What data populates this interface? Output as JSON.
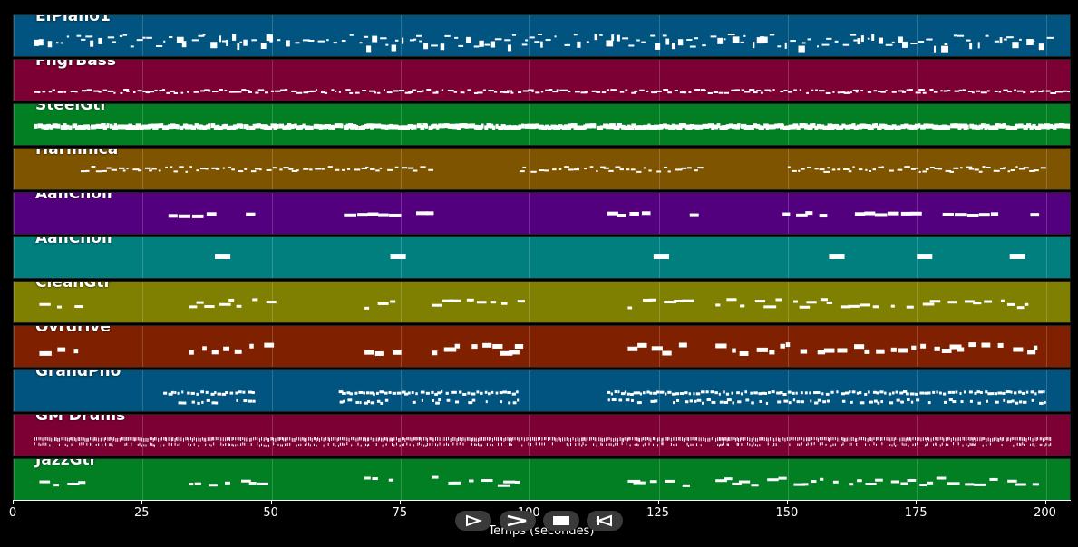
{
  "tracks": [
    {
      "name": "ElPiano1",
      "color": "#01547f",
      "pattern": "sparse-mixed"
    },
    {
      "name": "FngrBass",
      "color": "#7d0034",
      "pattern": "low-line"
    },
    {
      "name": "SteelGtr",
      "color": "#017f22",
      "pattern": "dense-line"
    },
    {
      "name": "Harmnica",
      "color": "#7f5401",
      "pattern": "phrases"
    },
    {
      "name": "AahChoir",
      "color": "#53007f",
      "pattern": "blocks"
    },
    {
      "name": "AahChoir",
      "color": "#017f7f",
      "pattern": "short-blocks"
    },
    {
      "name": "CleanGtr",
      "color": "#7f7f01",
      "pattern": "riffs"
    },
    {
      "name": "Ovrdrive",
      "color": "#7f2101",
      "pattern": "riffs-bold"
    },
    {
      "name": "GrandPno",
      "color": "#01547f",
      "pattern": "arpeggio"
    },
    {
      "name": "GM Drums",
      "color": "#7d0034",
      "pattern": "drums"
    },
    {
      "name": "JazzGtr",
      "color": "#017f22",
      "pattern": "riffs"
    }
  ],
  "axis": {
    "label": "Temps (secondes)",
    "min": 0,
    "max": 205,
    "ticks": [
      "0",
      "25",
      "50",
      "75",
      "100",
      "125",
      "150",
      "175",
      "200"
    ]
  },
  "controls": [
    {
      "name": "rewind-icon"
    },
    {
      "name": "play-icon"
    },
    {
      "name": "stop-icon"
    },
    {
      "name": "back-icon"
    }
  ]
}
